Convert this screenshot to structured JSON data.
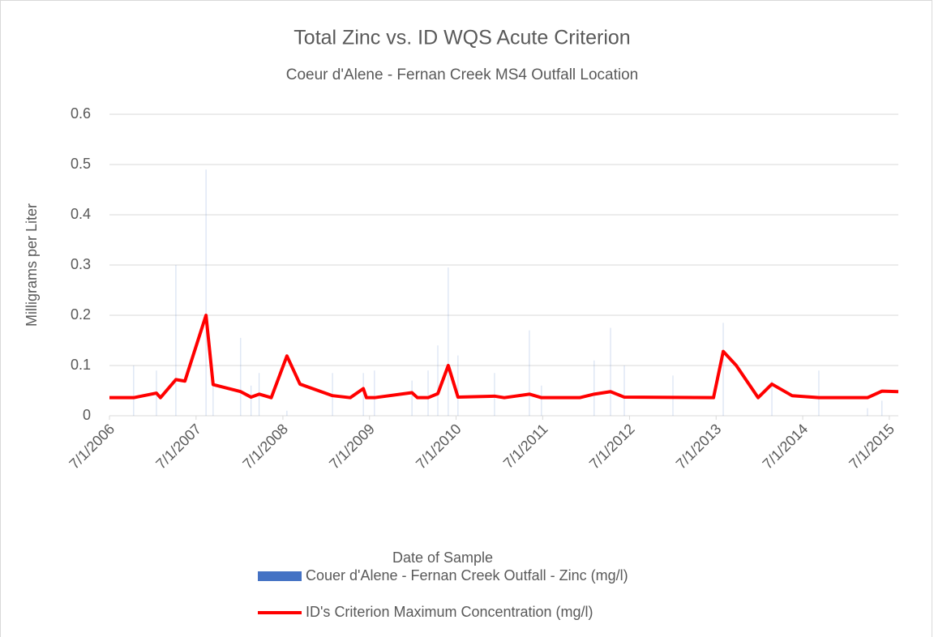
{
  "chart_data": {
    "type": "bar_line",
    "title": "Total Zinc  vs. ID WQS Acute Criterion",
    "subtitle": "Coeur d'Alene - Fernan Creek MS4 Outfall Location",
    "x_label": "Date of Sample",
    "y_label": "Milligrams per Liter",
    "xlim": [
      "2006-07-01",
      "2015-08-08"
    ],
    "xticks": [
      {
        "value": "2006-07-01",
        "label": "7/1/2006"
      },
      {
        "value": "2007-07-01",
        "label": "7/1/2007"
      },
      {
        "value": "2008-07-01",
        "label": "7/1/2008"
      },
      {
        "value": "2009-07-01",
        "label": "7/1/2009"
      },
      {
        "value": "2010-07-01",
        "label": "7/1/2010"
      },
      {
        "value": "2011-07-01",
        "label": "7/1/2011"
      },
      {
        "value": "2012-07-01",
        "label": "7/1/2012"
      },
      {
        "value": "2013-07-01",
        "label": "7/1/2013"
      },
      {
        "value": "2014-07-01",
        "label": "7/1/2014"
      },
      {
        "value": "2015-07-01",
        "label": "7/1/2015"
      }
    ],
    "ylim": [
      0,
      0.6
    ],
    "yticks": [
      0,
      0.1,
      0.2,
      0.3,
      0.4,
      0.5,
      0.6
    ],
    "grid": true,
    "legend": "bottom",
    "series": [
      {
        "name": "Couer d'Alene - Fernan Creek Outfall - Zinc (mg/l)",
        "kind": "bar",
        "color": "#4472c4",
        "x": [
          "2006-10-11",
          "2007-01-15",
          "2007-04-07",
          "2007-08-12",
          "2007-09-11",
          "2008-01-05",
          "2008-02-18",
          "2008-03-23",
          "2008-07-18",
          "2009-01-26",
          "2009-06-05",
          "2009-07-22",
          "2009-12-27",
          "2010-03-05",
          "2010-04-15",
          "2010-05-29",
          "2010-07-09",
          "2010-12-10",
          "2011-05-06",
          "2011-06-26",
          "2012-02-03",
          "2012-04-12",
          "2012-06-09",
          "2012-12-31",
          "2013-07-31",
          "2014-02-21",
          "2014-09-07",
          "2015-03-31",
          "2015-05-31"
        ],
        "values": [
          0.1,
          0.09,
          0.3,
          0.49,
          0.06,
          0.155,
          0.06,
          0.085,
          0.01,
          0.085,
          0.085,
          0.09,
          0.07,
          0.09,
          0.14,
          0.295,
          0.12,
          0.085,
          0.17,
          0.06,
          0.11,
          0.175,
          0.1,
          0.08,
          0.185,
          0.07,
          0.09,
          0.015,
          0.03
        ]
      },
      {
        "name": "ID's Criterion Maximum Concentration (mg/l)",
        "kind": "line",
        "color": "#ff0000",
        "x": [
          "2006-07-01",
          "2006-10-11",
          "2007-01-15",
          "2007-02-01",
          "2007-04-07",
          "2007-05-15",
          "2007-08-12",
          "2007-09-11",
          "2008-01-05",
          "2008-02-18",
          "2008-03-23",
          "2008-05-13",
          "2008-07-18",
          "2008-09-11",
          "2009-01-26",
          "2009-04-11",
          "2009-06-05",
          "2009-06-18",
          "2009-07-22",
          "2009-12-27",
          "2010-01-19",
          "2010-03-05",
          "2010-04-15",
          "2010-05-29",
          "2010-07-09",
          "2010-12-10",
          "2011-01-20",
          "2011-05-06",
          "2011-06-26",
          "2011-12-04",
          "2012-02-03",
          "2012-04-12",
          "2012-06-09",
          "2013-06-20",
          "2013-07-31",
          "2013-09-24",
          "2013-12-25",
          "2014-02-21",
          "2014-05-17",
          "2014-09-07",
          "2015-03-31",
          "2015-05-31",
          "2015-08-08"
        ],
        "values": [
          0.036,
          0.036,
          0.045,
          0.036,
          0.072,
          0.069,
          0.2,
          0.062,
          0.048,
          0.037,
          0.043,
          0.036,
          0.119,
          0.063,
          0.04,
          0.036,
          0.054,
          0.036,
          0.036,
          0.046,
          0.036,
          0.036,
          0.044,
          0.1,
          0.037,
          0.039,
          0.036,
          0.043,
          0.036,
          0.036,
          0.043,
          0.048,
          0.037,
          0.036,
          0.128,
          0.1,
          0.036,
          0.063,
          0.04,
          0.036,
          0.036,
          0.049,
          0.048
        ]
      }
    ]
  }
}
